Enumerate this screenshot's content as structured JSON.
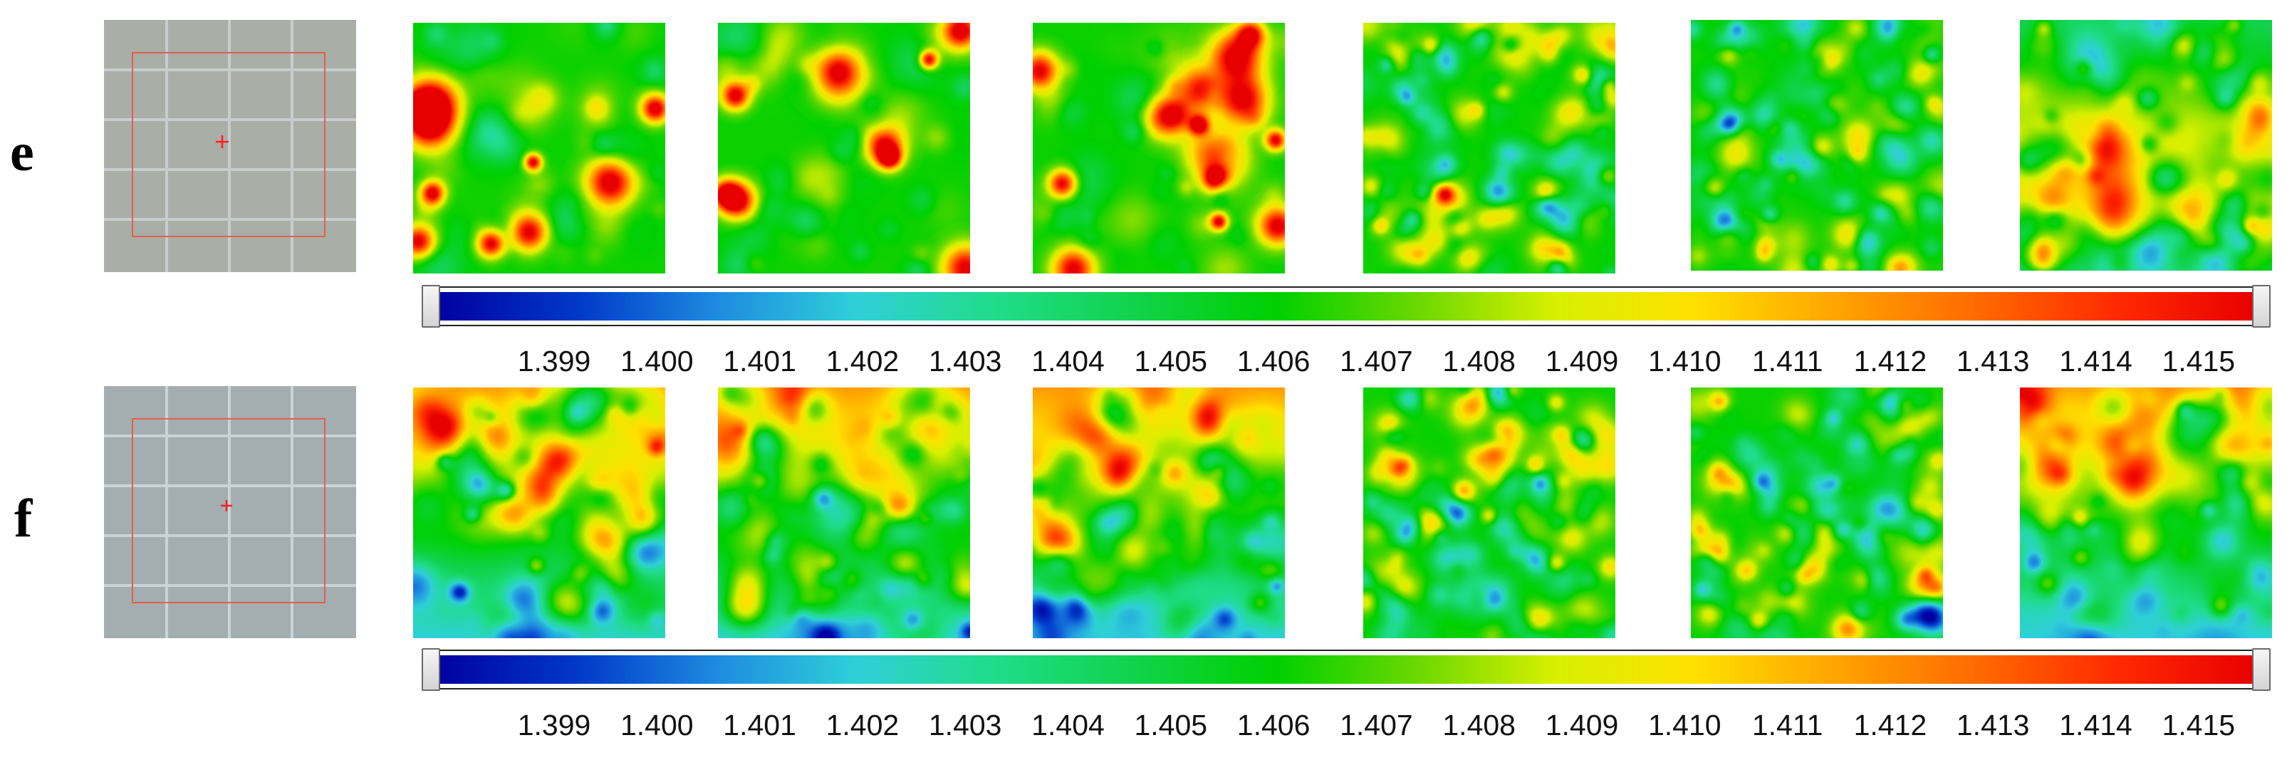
{
  "rows": [
    {
      "label": "e",
      "ticks": [
        "1.399",
        "1.400",
        "1.401",
        "1.402",
        "1.403",
        "1.404",
        "1.405",
        "1.406",
        "1.407",
        "1.408",
        "1.409",
        "1.410",
        "1.411",
        "1.412",
        "1.413",
        "1.414",
        "1.415"
      ]
    },
    {
      "label": "f",
      "ticks": [
        "1.399",
        "1.400",
        "1.401",
        "1.402",
        "1.403",
        "1.404",
        "1.405",
        "1.406",
        "1.407",
        "1.408",
        "1.409",
        "1.410",
        "1.411",
        "1.412",
        "1.413",
        "1.414",
        "1.415"
      ]
    }
  ],
  "colors": {
    "thumb_bg": "#a9aea6",
    "thumb_grid": "#d9e4ee",
    "roi": "#e0604f",
    "crosshair": "#ff1f1f",
    "colormap": [
      "#0000a0",
      "#0038c8",
      "#1e8ae0",
      "#2fd0d8",
      "#20dc8a",
      "#11d24a",
      "#00d000",
      "#6ad800",
      "#d8f000",
      "#ffe000",
      "#ffa400",
      "#ff6a00",
      "#ff2a00",
      "#e80000"
    ]
  }
}
